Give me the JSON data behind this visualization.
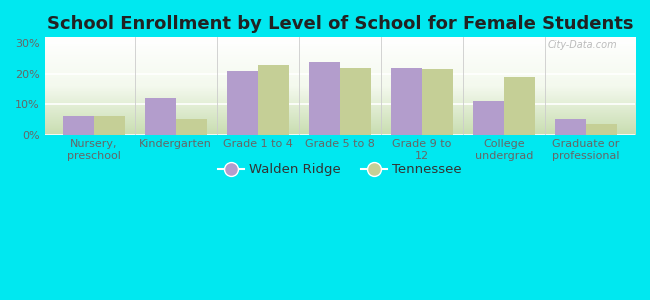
{
  "title": "School Enrollment by Level of School for Female Students",
  "categories": [
    "Nursery,\npreschool",
    "Kindergarten",
    "Grade 1 to 4",
    "Grade 5 to 8",
    "Grade 9 to\n12",
    "College\nundergrad",
    "Graduate or\nprofessional"
  ],
  "walden_ridge": [
    6.0,
    12.0,
    21.0,
    24.0,
    22.0,
    11.0,
    5.0
  ],
  "tennessee": [
    6.0,
    5.0,
    23.0,
    22.0,
    21.5,
    19.0,
    3.5
  ],
  "walden_color": "#b39dcc",
  "tennessee_color": "#c5cf96",
  "background_outer": "#00e8f0",
  "yticks": [
    0,
    10,
    20,
    30
  ],
  "ylim": [
    0,
    32
  ],
  "bar_width": 0.38,
  "title_fontsize": 13,
  "legend_fontsize": 9.5,
  "axis_fontsize": 8,
  "watermark": "City-Data.com"
}
